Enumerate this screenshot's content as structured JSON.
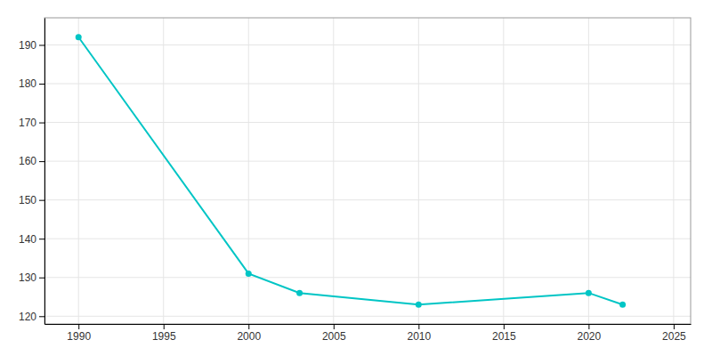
{
  "chart_data": {
    "type": "line",
    "x": [
      1990,
      2000,
      2003,
      2010,
      2020,
      2022
    ],
    "values": [
      192,
      131,
      126,
      123,
      126,
      123
    ],
    "color": "#00C5C5",
    "marker": "circle",
    "xlim": [
      1988,
      2026
    ],
    "ylim": [
      118,
      197
    ],
    "xticks": [
      1990,
      1995,
      2000,
      2005,
      2010,
      2015,
      2020,
      2025
    ],
    "yticks": [
      120,
      130,
      140,
      150,
      160,
      170,
      180,
      190
    ],
    "grid": true
  }
}
